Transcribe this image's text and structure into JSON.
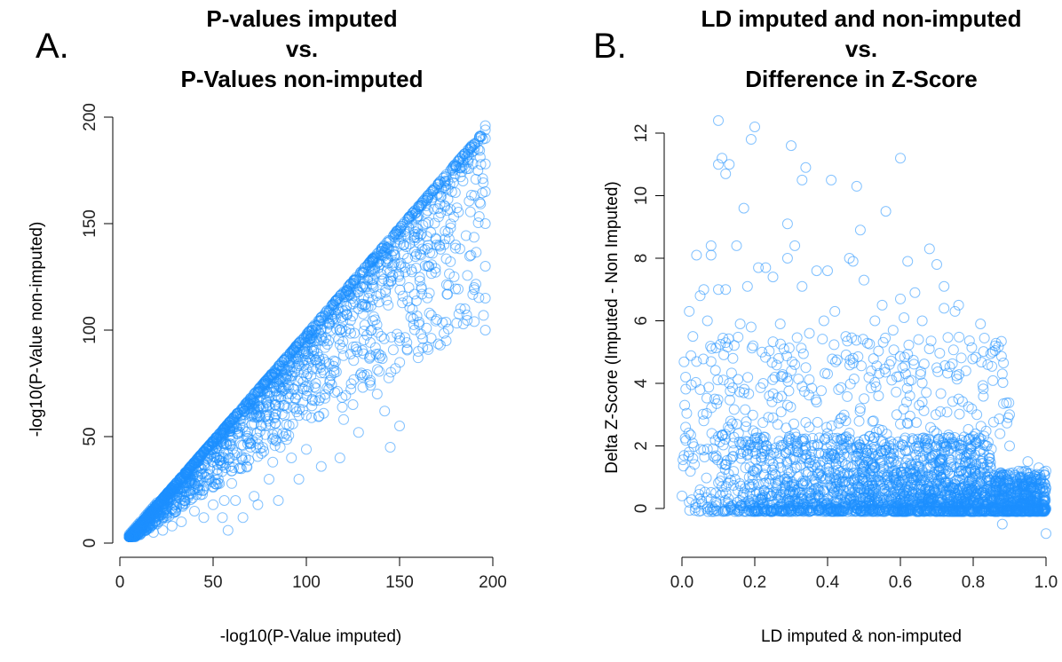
{
  "chart_data": [
    {
      "id": "A",
      "panel_label": "A.",
      "type": "scatter",
      "title_lines": [
        "P-values imputed",
        "vs.",
        "P-Values non-imputed"
      ],
      "xlabel": "-log10(P-Value imputed)",
      "ylabel": "-log10(P-Value non-imputed)",
      "xlim": [
        0,
        200
      ],
      "ylim": [
        0,
        200
      ],
      "xticks": [
        0,
        50,
        100,
        150,
        200
      ],
      "yticks": [
        0,
        50,
        100,
        150,
        200
      ],
      "grid": false,
      "legend": "none",
      "color": "#1E90FF",
      "marker": "open-circle",
      "points": [
        [
          5,
          4
        ],
        [
          6,
          5
        ],
        [
          7,
          6
        ],
        [
          8,
          7
        ],
        [
          9,
          8
        ],
        [
          10,
          9
        ],
        [
          11,
          10
        ],
        [
          12,
          10
        ],
        [
          13,
          12
        ],
        [
          14,
          13
        ],
        [
          15,
          14
        ],
        [
          16,
          15
        ],
        [
          17,
          16
        ],
        [
          18,
          17
        ],
        [
          19,
          18
        ],
        [
          20,
          19
        ],
        [
          22,
          20
        ],
        [
          24,
          22
        ],
        [
          26,
          24
        ],
        [
          28,
          26
        ],
        [
          30,
          28
        ],
        [
          32,
          30
        ],
        [
          35,
          33
        ],
        [
          38,
          36
        ],
        [
          40,
          38
        ],
        [
          43,
          41
        ],
        [
          46,
          44
        ],
        [
          50,
          47
        ],
        [
          54,
          51
        ],
        [
          58,
          55
        ],
        [
          62,
          59
        ],
        [
          66,
          63
        ],
        [
          70,
          67
        ],
        [
          74,
          71
        ],
        [
          78,
          75
        ],
        [
          82,
          79
        ],
        [
          86,
          83
        ],
        [
          90,
          87
        ],
        [
          95,
          92
        ],
        [
          100,
          97
        ],
        [
          105,
          102
        ],
        [
          110,
          107
        ],
        [
          115,
          112
        ],
        [
          120,
          117
        ],
        [
          125,
          122
        ],
        [
          130,
          127
        ],
        [
          135,
          132
        ],
        [
          140,
          137
        ],
        [
          145,
          142
        ],
        [
          150,
          147
        ],
        [
          155,
          152
        ],
        [
          160,
          157
        ],
        [
          165,
          162
        ],
        [
          170,
          167
        ],
        [
          175,
          172
        ],
        [
          180,
          177
        ],
        [
          185,
          182
        ],
        [
          190,
          187
        ],
        [
          196,
          196
        ],
        [
          196,
          194
        ],
        [
          196,
          190
        ],
        [
          196,
          178
        ],
        [
          196,
          165
        ],
        [
          196,
          150
        ],
        [
          196,
          130
        ],
        [
          196,
          115
        ],
        [
          196,
          100
        ],
        [
          193,
          160
        ],
        [
          190,
          120
        ],
        [
          185,
          110
        ],
        [
          180,
          140
        ],
        [
          175,
          95
        ],
        [
          170,
          105
        ],
        [
          165,
          130
        ],
        [
          160,
          90
        ],
        [
          155,
          120
        ],
        [
          150,
          95
        ],
        [
          145,
          45
        ],
        [
          142,
          62
        ],
        [
          140,
          88
        ],
        [
          138,
          70
        ],
        [
          135,
          100
        ],
        [
          130,
          78
        ],
        [
          125,
          65
        ],
        [
          120,
          58
        ],
        [
          115,
          80
        ],
        [
          110,
          68
        ],
        [
          105,
          75
        ],
        [
          100,
          60
        ],
        [
          96,
          30
        ],
        [
          92,
          40
        ],
        [
          88,
          50
        ],
        [
          85,
          20
        ],
        [
          82,
          38
        ],
        [
          80,
          30
        ],
        [
          76,
          55
        ],
        [
          72,
          22
        ],
        [
          70,
          45
        ],
        [
          66,
          12
        ],
        [
          64,
          35
        ],
        [
          60,
          28
        ],
        [
          58,
          6
        ],
        [
          56,
          20
        ],
        [
          52,
          40
        ],
        [
          50,
          18
        ],
        [
          48,
          30
        ],
        [
          45,
          12
        ],
        [
          42,
          25
        ],
        [
          40,
          15
        ],
        [
          38,
          30
        ],
        [
          35,
          20
        ],
        [
          33,
          10
        ],
        [
          30,
          15
        ],
        [
          28,
          8
        ],
        [
          25,
          12
        ],
        [
          23,
          6
        ],
        [
          20,
          9
        ],
        [
          18,
          5
        ],
        [
          16,
          7
        ],
        [
          14,
          6
        ],
        [
          12,
          5
        ],
        [
          11,
          4
        ],
        [
          9,
          4
        ],
        [
          8,
          3
        ],
        [
          7,
          3
        ],
        [
          6,
          3
        ],
        [
          55,
          12
        ],
        [
          62,
          20
        ],
        [
          68,
          36
        ],
        [
          74,
          18
        ],
        [
          80,
          60
        ],
        [
          86,
          45
        ],
        [
          92,
          70
        ],
        [
          98,
          85
        ],
        [
          104,
          90
        ],
        [
          112,
          95
        ],
        [
          118,
          100
        ],
        [
          128,
          110
        ],
        [
          136,
          120
        ],
        [
          146,
          130
        ],
        [
          152,
          140
        ],
        [
          158,
          145
        ],
        [
          164,
          150
        ],
        [
          172,
          155
        ],
        [
          178,
          165
        ],
        [
          184,
          170
        ],
        [
          100,
          44
        ],
        [
          108,
          36
        ],
        [
          118,
          40
        ],
        [
          128,
          52
        ],
        [
          150,
          55
        ]
      ],
      "fill_region": "dense near y = x diagonal and below"
    },
    {
      "id": "B",
      "panel_label": "B.",
      "type": "scatter",
      "title_lines": [
        "LD imputed and non-imputed",
        "vs.",
        "Difference in Z-Score"
      ],
      "xlabel": "LD imputed & non-imputed",
      "ylabel": "Delta Z-Score (Imputed - Non Imputed)",
      "xlim": [
        0,
        1
      ],
      "ylim": [
        -1,
        12.5
      ],
      "xticks": [
        0.0,
        0.2,
        0.4,
        0.6,
        0.8,
        1.0
      ],
      "xtick_labels": [
        "0.0",
        "0.2",
        "0.4",
        "0.6",
        "0.8",
        "1.0"
      ],
      "yticks": [
        0,
        2,
        4,
        6,
        8,
        10,
        12
      ],
      "grid": false,
      "legend": "none",
      "color": "#1E90FF",
      "marker": "open-circle",
      "points": [
        [
          0.1,
          12.4
        ],
        [
          0.2,
          12.2
        ],
        [
          0.19,
          11.8
        ],
        [
          0.11,
          11.2
        ],
        [
          0.13,
          11.0
        ],
        [
          0.1,
          11.0
        ],
        [
          0.12,
          10.7
        ],
        [
          0.3,
          11.6
        ],
        [
          0.34,
          10.9
        ],
        [
          0.33,
          10.5
        ],
        [
          0.41,
          10.5
        ],
        [
          0.48,
          10.3
        ],
        [
          0.6,
          11.2
        ],
        [
          0.56,
          9.5
        ],
        [
          0.17,
          9.6
        ],
        [
          0.49,
          8.9
        ],
        [
          0.29,
          9.1
        ],
        [
          0.04,
          8.1
        ],
        [
          0.08,
          8.4
        ],
        [
          0.08,
          8.1
        ],
        [
          0.15,
          8.4
        ],
        [
          0.31,
          8.4
        ],
        [
          0.29,
          8.0
        ],
        [
          0.46,
          8.0
        ],
        [
          0.37,
          7.6
        ],
        [
          0.4,
          7.6
        ],
        [
          0.47,
          7.9
        ],
        [
          0.62,
          7.9
        ],
        [
          0.68,
          8.3
        ],
        [
          0.7,
          7.8
        ],
        [
          0.72,
          7.1
        ],
        [
          0.06,
          7.0
        ],
        [
          0.05,
          6.8
        ],
        [
          0.1,
          7.0
        ],
        [
          0.12,
          7.0
        ],
        [
          0.18,
          7.1
        ],
        [
          0.21,
          7.7
        ],
        [
          0.23,
          7.7
        ],
        [
          0.25,
          7.4
        ],
        [
          0.33,
          7.1
        ],
        [
          0.5,
          7.3
        ],
        [
          0.55,
          6.5
        ],
        [
          0.6,
          6.7
        ],
        [
          0.64,
          6.9
        ],
        [
          0.66,
          6.0
        ],
        [
          0.75,
          6.3
        ],
        [
          0.76,
          6.5
        ],
        [
          0.72,
          6.4
        ],
        [
          0.02,
          6.3
        ],
        [
          0.03,
          5.5
        ],
        [
          0.07,
          6.0
        ],
        [
          0.12,
          5.3
        ],
        [
          0.16,
          5.9
        ],
        [
          0.19,
          5.8
        ],
        [
          0.27,
          5.9
        ],
        [
          0.35,
          5.6
        ],
        [
          0.39,
          6.0
        ],
        [
          0.42,
          6.3
        ],
        [
          0.45,
          5.5
        ],
        [
          0.53,
          6.0
        ],
        [
          0.58,
          5.7
        ],
        [
          0.61,
          6.1
        ],
        [
          0.65,
          5.4
        ],
        [
          0.82,
          5.9
        ],
        [
          0.86,
          5.2
        ],
        [
          0.04,
          4.7
        ],
        [
          0.08,
          4.7
        ],
        [
          0.14,
          4.8
        ],
        [
          0.22,
          5.0
        ],
        [
          0.28,
          5.1
        ],
        [
          0.31,
          4.6
        ],
        [
          0.4,
          4.3
        ],
        [
          0.47,
          4.8
        ],
        [
          0.52,
          4.4
        ],
        [
          0.57,
          4.6
        ],
        [
          0.63,
          4.1
        ],
        [
          0.7,
          4.5
        ],
        [
          0.78,
          4.4
        ],
        [
          0.84,
          4.6
        ],
        [
          0.88,
          4.3
        ],
        [
          0.01,
          4.2
        ],
        [
          0.05,
          3.8
        ],
        [
          0.09,
          3.5
        ],
        [
          0.13,
          4.0
        ],
        [
          0.17,
          3.7
        ],
        [
          0.24,
          3.6
        ],
        [
          0.29,
          3.3
        ],
        [
          0.33,
          3.9
        ],
        [
          0.37,
          3.4
        ],
        [
          0.43,
          3.8
        ],
        [
          0.49,
          3.2
        ],
        [
          0.54,
          3.6
        ],
        [
          0.59,
          3.0
        ],
        [
          0.66,
          3.4
        ],
        [
          0.71,
          3.1
        ],
        [
          0.76,
          3.5
        ],
        [
          0.81,
          3.0
        ],
        [
          0.9,
          3.0
        ],
        [
          0.01,
          2.6
        ],
        [
          0.06,
          2.8
        ],
        [
          0.1,
          2.3
        ],
        [
          0.15,
          2.7
        ],
        [
          0.2,
          2.2
        ],
        [
          0.25,
          2.9
        ],
        [
          0.3,
          2.1
        ],
        [
          0.35,
          2.6
        ],
        [
          0.4,
          2.4
        ],
        [
          0.45,
          2.8
        ],
        [
          0.5,
          2.2
        ],
        [
          0.55,
          2.5
        ],
        [
          0.6,
          2.7
        ],
        [
          0.65,
          2.1
        ],
        [
          0.7,
          2.4
        ],
        [
          0.75,
          2.0
        ],
        [
          0.8,
          2.3
        ],
        [
          0.85,
          1.9
        ],
        [
          0.9,
          2.0
        ],
        [
          0.95,
          1.5
        ],
        [
          0.98,
          1.3
        ],
        [
          1.0,
          1.2
        ],
        [
          0.03,
          1.6
        ],
        [
          0.07,
          1.9
        ],
        [
          0.12,
          1.4
        ],
        [
          0.18,
          1.7
        ],
        [
          0.23,
          1.3
        ],
        [
          0.27,
          1.6
        ],
        [
          0.32,
          1.8
        ],
        [
          0.38,
          1.2
        ],
        [
          0.44,
          1.5
        ],
        [
          0.48,
          1.9
        ],
        [
          0.53,
          1.3
        ],
        [
          0.58,
          1.6
        ],
        [
          0.63,
          1.4
        ],
        [
          0.68,
          1.7
        ],
        [
          0.73,
          1.2
        ],
        [
          0.78,
          1.5
        ],
        [
          0.83,
          1.3
        ],
        [
          0.88,
          1.1
        ],
        [
          0.93,
          1.0
        ],
        [
          0.97,
          0.8
        ],
        [
          1.0,
          -0.8
        ],
        [
          0.88,
          -0.5
        ],
        [
          0.0,
          0.4
        ],
        [
          0.02,
          0.2
        ],
        [
          0.05,
          0.6
        ],
        [
          0.08,
          0.3
        ],
        [
          0.11,
          0.7
        ],
        [
          0.14,
          0.1
        ],
        [
          0.17,
          0.5
        ],
        [
          0.21,
          0.3
        ],
        [
          0.24,
          0.8
        ],
        [
          0.28,
          0.2
        ],
        [
          0.31,
          0.6
        ],
        [
          0.35,
          0.4
        ],
        [
          0.39,
          0.1
        ],
        [
          0.42,
          0.7
        ],
        [
          0.46,
          0.3
        ],
        [
          0.5,
          0.5
        ],
        [
          0.54,
          0.2
        ],
        [
          0.57,
          0.8
        ],
        [
          0.61,
          0.4
        ],
        [
          0.64,
          0.1
        ],
        [
          0.68,
          0.6
        ],
        [
          0.71,
          0.3
        ],
        [
          0.75,
          0.5
        ],
        [
          0.78,
          0.2
        ],
        [
          0.82,
          0.6
        ],
        [
          0.85,
          0.3
        ],
        [
          0.88,
          0.4
        ],
        [
          0.91,
          0.2
        ],
        [
          0.94,
          0.3
        ],
        [
          0.96,
          0.1
        ],
        [
          0.98,
          0.2
        ],
        [
          1.0,
          0.0
        ],
        [
          0.99,
          0.1
        ],
        [
          0.97,
          0.4
        ],
        [
          0.93,
          0.6
        ],
        [
          0.9,
          0.8
        ]
      ],
      "fill_region": "dense band between 0 and 2, thickest toward x = 0.8-1.0"
    }
  ]
}
